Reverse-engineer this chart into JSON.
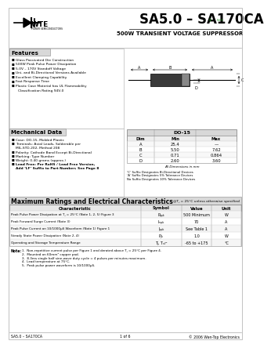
{
  "title_part": "SA5.0 – SA170CA",
  "title_sub": "500W TRANSIENT VOLTAGE SUPPRESSOR",
  "features_title": "Features",
  "features": [
    "Glass Passivated Die Construction",
    "500W Peak Pulse Power Dissipation",
    "5.0V – 170V Standoff Voltage",
    "Uni- and Bi-Directional Versions Available",
    "Excellent Clamping Capability",
    "Fast Response Time",
    "Plastic Case Material has UL Flammability",
    "   Classification Rating 94V-0"
  ],
  "mech_title": "Mechanical Data",
  "mech_items": [
    [
      "Case: DO-15, Molded Plastic",
      false
    ],
    [
      "Terminals: Axial Leads, Solderable per",
      false
    ],
    [
      "   MIL-STD-202, Method 208",
      false
    ],
    [
      "Polarity: Cathode Band Except Bi-Directional",
      false
    ],
    [
      "Marking: Type Number",
      false
    ],
    [
      "Weight: 0.40 grams (approx.)",
      false
    ],
    [
      "Lead Free: Per RoHS / Lead Free Version,",
      true
    ],
    [
      "   Add ‘LF’ Suffix to Part Number; See Page 8",
      true
    ]
  ],
  "dim_title": "DO-15",
  "dim_headers": [
    "Dim",
    "Min",
    "Max"
  ],
  "dim_rows": [
    [
      "A",
      "25.4",
      "—"
    ],
    [
      "B",
      "5.50",
      "7.62"
    ],
    [
      "C",
      "0.71",
      "0.864"
    ],
    [
      "D",
      "2.60",
      "3.60"
    ]
  ],
  "dim_note": "All Dimensions in mm",
  "suffix_notes": [
    "‘C’ Suffix Designates Bi-Directional Devices",
    "‘A’ Suffix Designates 5% Tolerance Devices",
    "No Suffix Designates 10% Tolerance Devices"
  ],
  "ratings_title": "Maximum Ratings and Electrical Characteristics",
  "ratings_subtitle": "@T⁁ = 25°C unless otherwise specified",
  "table_headers": [
    "Characteristic",
    "Symbol",
    "Value",
    "Unit"
  ],
  "table_rows": [
    [
      "Peak Pulse Power Dissipation at T⁁ = 25°C (Note 1, 2, 5) Figure 3",
      "Pₚₚₖ",
      "500 Minimum",
      "W"
    ],
    [
      "Peak Forward Surge Current (Note 3)",
      "Iₘₚₖ",
      "70",
      "A"
    ],
    [
      "Peak Pulse Current on 10/1000μS Waveform (Note 1) Figure 1",
      "Iₚₚₖ",
      "See Table 1",
      "A"
    ],
    [
      "Steady State Power Dissipation (Note 2, 4)",
      "P⁁ₖ",
      "1.0",
      "W"
    ],
    [
      "Operating and Storage Temperature Range",
      "Tⱼ, Tₛₜᴳ",
      "-65 to +175",
      "°C"
    ]
  ],
  "notes_label": "Note:",
  "notes": [
    "1.  Non-repetitive current pulse per Figure 1 and derated above T⁁ = 25°C per Figure 4.",
    "2.  Mounted on 60mm² copper pad.",
    "3.  8.3ms single half sine-wave duty cycle = 4 pulses per minutes maximum.",
    "4.  Lead temperature at 75°C.",
    "5.  Peak pulse power waveform is 10/1000μS."
  ],
  "footer_left": "SA5.0 – SA170CA",
  "footer_center": "1 of 6",
  "footer_right": "© 2006 Wan-Top Electronics"
}
